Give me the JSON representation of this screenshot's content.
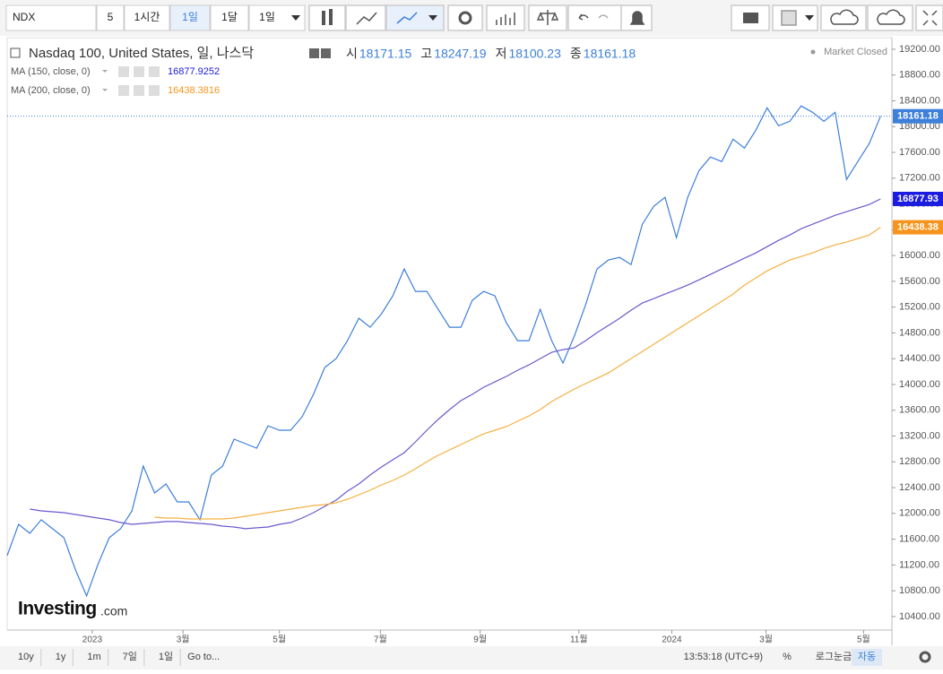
{
  "toolbar": {
    "symbol": "NDX",
    "interval_input": "5",
    "interval_unit": "1시간",
    "interval_active": "1일",
    "interval_month": "1달",
    "chart_interval": "1일"
  },
  "bottom_bar": {
    "ranges": [
      "10y",
      "1y",
      "1m",
      "7일",
      "1일"
    ],
    "goto": "Go to...",
    "clock": "13:53:18 (UTC+9)",
    "percent": "%",
    "log": "로그눈금",
    "auto": "자동"
  },
  "logo": {
    "main": "Investing",
    "suffix": ".com"
  },
  "chart_data": {
    "type": "line",
    "title": "Nasdaq 100, United States, 일, 나스닥",
    "status": "Market Closed",
    "ohlc": [
      {
        "label": "시",
        "value": "18171.15"
      },
      {
        "label": "고",
        "value": "18247.19"
      },
      {
        "label": "저",
        "value": "18100.23"
      },
      {
        "label": "종",
        "value": "18161.18"
      }
    ],
    "xlim": [
      0,
      78
    ],
    "xticks": [
      {
        "value": 7.5,
        "label": "2023"
      },
      {
        "value": 15.5,
        "label": "3월"
      },
      {
        "value": 24,
        "label": "5월"
      },
      {
        "value": 32.9,
        "label": "7월"
      },
      {
        "value": 41.7,
        "label": "9월"
      },
      {
        "value": 50.4,
        "label": "11월"
      },
      {
        "value": 58.6,
        "label": "2024"
      },
      {
        "value": 66.9,
        "label": "3월"
      },
      {
        "value": 75.5,
        "label": "5월"
      }
    ],
    "ylim": [
      10190,
      19380
    ],
    "yticks": [
      {
        "value": 10400,
        "label": "10400.00"
      },
      {
        "value": 10800,
        "label": "10800.00"
      },
      {
        "value": 11200,
        "label": "11200.00"
      },
      {
        "value": 11600,
        "label": "11600.00"
      },
      {
        "value": 12000,
        "label": "12000.00"
      },
      {
        "value": 12400,
        "label": "12400.00"
      },
      {
        "value": 12800,
        "label": "12800.00"
      },
      {
        "value": 13200,
        "label": "13200.00"
      },
      {
        "value": 13600,
        "label": "13600.00"
      },
      {
        "value": 14000,
        "label": "14000.00"
      },
      {
        "value": 14400,
        "label": "14400.00"
      },
      {
        "value": 14800,
        "label": "14800.00"
      },
      {
        "value": 15200,
        "label": "15200.00"
      },
      {
        "value": 15600,
        "label": "15600.00"
      },
      {
        "value": 16000,
        "label": "16000.00"
      },
      {
        "value": 16400,
        "label": "16400.00"
      },
      {
        "value": 16800,
        "label": "16800.00"
      },
      {
        "value": 17200,
        "label": "17200.00"
      },
      {
        "value": 17600,
        "label": "17600.00"
      },
      {
        "value": 18000,
        "label": "18000.00"
      },
      {
        "value": 18400,
        "label": "18400.00"
      },
      {
        "value": 18800,
        "label": "18800.00"
      },
      {
        "value": 19200,
        "label": "19200.00"
      }
    ],
    "series": [
      {
        "name": "Nasdaq 100",
        "color": "#3d7fd9",
        "tag_color": "#3d7fd9",
        "values": [
          11345,
          11831,
          11692,
          11901,
          11762,
          11623,
          11136,
          10720,
          11206,
          11623,
          11762,
          12039,
          12734,
          12317,
          12456,
          12178,
          12178,
          11901,
          12595,
          12734,
          13151,
          13082,
          13012,
          13359,
          13290,
          13290,
          13498,
          13846,
          14263,
          14401,
          14679,
          15027,
          14888,
          15096,
          15374,
          15791,
          15444,
          15444,
          15166,
          14888,
          14888,
          15305,
          15444,
          15374,
          14957,
          14679,
          14679,
          15166,
          14679,
          14332,
          14749,
          15235,
          15791,
          15930,
          15971,
          15860,
          16486,
          16763,
          16902,
          16277,
          16902,
          17319,
          17528,
          17458,
          17805,
          17667,
          17944,
          18292,
          18014,
          18083,
          18320,
          18222,
          18083,
          18222,
          17180,
          17458,
          17736,
          18161.18
        ]
      },
      {
        "name": "MA (150, close, 0)",
        "legend_value": "16877.9252",
        "color": "#6a5acd",
        "tag_color": "#1c1ce0",
        "values": [
          null,
          null,
          12067,
          12039,
          12025,
          12012,
          11984,
          11956,
          11928,
          11901,
          11859,
          11831,
          11845,
          11859,
          11873,
          11873,
          11859,
          11845,
          11831,
          11803,
          11789,
          11762,
          11776,
          11789,
          11831,
          11859,
          11928,
          12012,
          12109,
          12206,
          12345,
          12456,
          12595,
          12720,
          12831,
          12942,
          13109,
          13290,
          13457,
          13610,
          13749,
          13846,
          13957,
          14040,
          14124,
          14221,
          14304,
          14401,
          14499,
          14540,
          14568,
          14679,
          14804,
          14915,
          15027,
          15152,
          15263,
          15332,
          15402,
          15471,
          15541,
          15624,
          15707,
          15791,
          15874,
          15958,
          16041,
          16138,
          16235,
          16319,
          16416,
          16486,
          16555,
          16624,
          16680,
          16736,
          16791,
          16877.93
        ]
      },
      {
        "name": "MA (200, close, 0)",
        "legend_value": "16438.3816",
        "color": "#f5b041",
        "tag_color": "#f7941d",
        "values": [
          null,
          null,
          null,
          null,
          null,
          null,
          null,
          null,
          null,
          null,
          null,
          null,
          null,
          11942,
          11928,
          11928,
          11914,
          11914,
          11914,
          11914,
          11928,
          11956,
          11984,
          12012,
          12039,
          12067,
          12095,
          12123,
          12137,
          12164,
          12220,
          12290,
          12359,
          12442,
          12512,
          12595,
          12692,
          12803,
          12901,
          12984,
          13068,
          13151,
          13234,
          13290,
          13346,
          13429,
          13512,
          13610,
          13735,
          13832,
          13929,
          14013,
          14096,
          14179,
          14290,
          14401,
          14513,
          14624,
          14735,
          14846,
          14957,
          15068,
          15179,
          15290,
          15402,
          15541,
          15652,
          15763,
          15846,
          15930,
          15985,
          16041,
          16110,
          16166,
          16208,
          16263,
          16319,
          16438.38
        ]
      }
    ]
  }
}
